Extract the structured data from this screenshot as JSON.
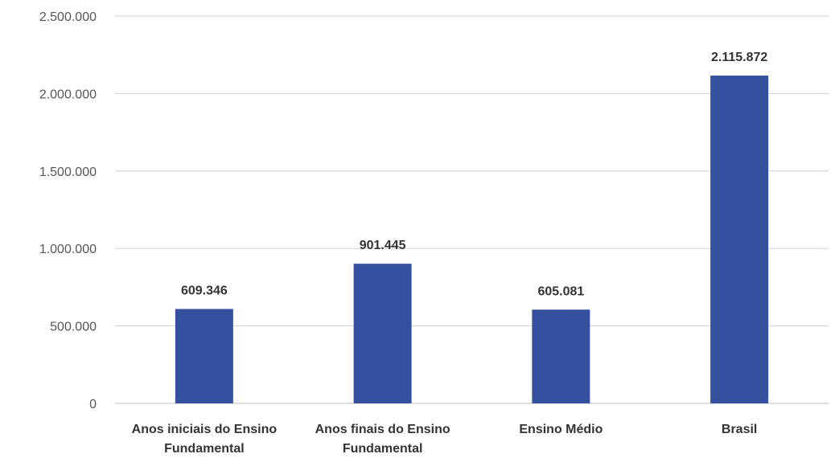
{
  "chart_data": {
    "type": "bar",
    "categories": [
      [
        "Anos iniciais do Ensino",
        "Fundamental"
      ],
      [
        "Anos finais do Ensino",
        "Fundamental"
      ],
      [
        "Ensino Médio"
      ],
      [
        "Brasil"
      ]
    ],
    "values": [
      609346,
      901445,
      605081,
      2115872
    ],
    "value_labels": [
      "609.346",
      "901.445",
      "605.081",
      "2.115.872"
    ],
    "y_ticks": [
      0,
      500000,
      1000000,
      1500000,
      2000000,
      2500000
    ],
    "y_tick_labels": [
      "0",
      "500.000",
      "1.000.000",
      "1.500.000",
      "2.000.000",
      "2.500.000"
    ],
    "ylim": [
      0,
      2500000
    ],
    "grid": true,
    "bar_color": "#3650a0"
  }
}
